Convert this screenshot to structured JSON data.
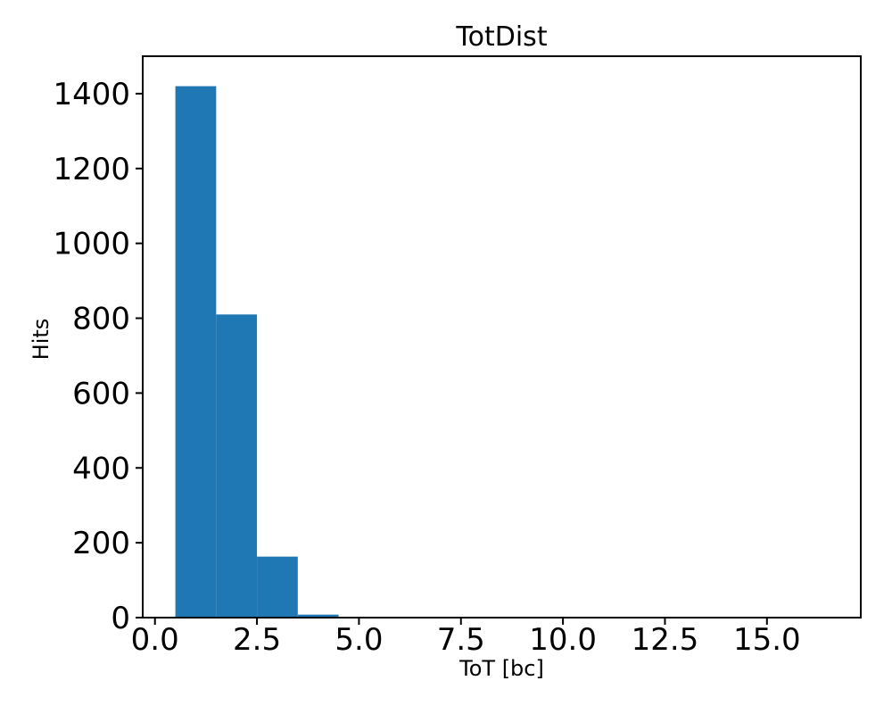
{
  "chart_data": {
    "type": "bar",
    "subtype": "histogram",
    "title": "TotDist",
    "xlabel": "ToT [bc]",
    "ylabel": "Hits",
    "bin_edges": [
      0.5,
      1.5,
      2.5,
      3.5,
      4.5,
      5.5,
      6.5,
      7.5,
      8.5,
      9.5,
      10.5,
      11.5,
      12.5,
      13.5,
      14.5,
      15.5,
      16.5
    ],
    "counts": [
      1420,
      810,
      163,
      8,
      0,
      0,
      0,
      0,
      0,
      0,
      0,
      0,
      0,
      0,
      0,
      0
    ],
    "xlim": [
      -0.3,
      17.3
    ],
    "ylim": [
      0,
      1500
    ],
    "xticks": {
      "values": [
        0,
        2.5,
        5,
        7.5,
        10,
        12.5,
        15
      ],
      "labels": [
        "0.0",
        "2.5",
        "5.0",
        "7.5",
        "10.0",
        "12.5",
        "15.0"
      ]
    },
    "yticks": {
      "values": [
        0,
        200,
        400,
        600,
        800,
        1000,
        1200,
        1400
      ],
      "labels": [
        "0",
        "200",
        "400",
        "600",
        "800",
        "1000",
        "1200",
        "1400"
      ]
    },
    "bar_color": "#1f77b4",
    "axis_color": "#000000",
    "background": "#ffffff",
    "grid": false,
    "legend": false
  }
}
